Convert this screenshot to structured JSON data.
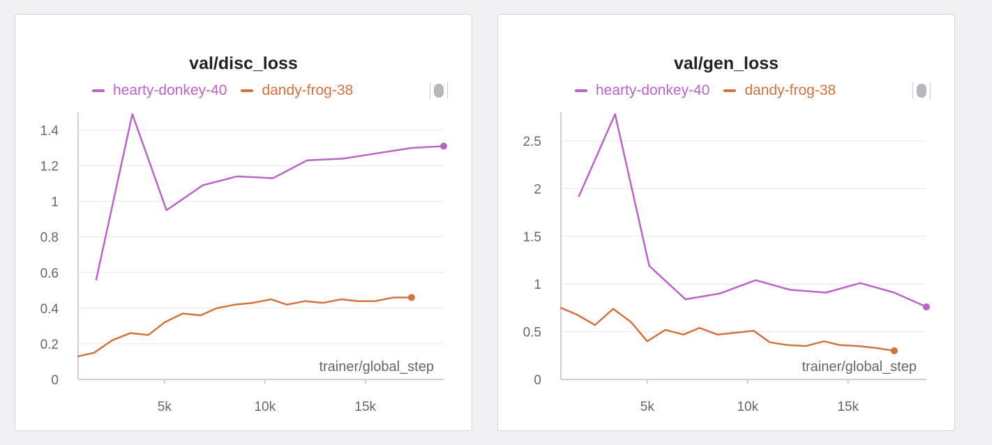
{
  "colors": {
    "hearty-donkey-40": "#b865c5",
    "dandy-frog-38": "#d1733e",
    "grid": "#e7e7ea",
    "axis": "#cfcfd4"
  },
  "legend_tool_icon": "toggle-pill-icon",
  "chart_data": [
    {
      "type": "line",
      "title": "val/disc_loss",
      "xlabel": "trainer/global_step",
      "ylabel": "",
      "xlim": [
        700,
        18900
      ],
      "ylim": [
        0,
        1.5
      ],
      "xticks": [
        {
          "v": 5000,
          "label": "5k"
        },
        {
          "v": 10000,
          "label": "10k"
        },
        {
          "v": 15000,
          "label": "15k"
        }
      ],
      "yticks": [
        {
          "v": 0,
          "label": "0"
        },
        {
          "v": 0.2,
          "label": "0.2"
        },
        {
          "v": 0.4,
          "label": "0.4"
        },
        {
          "v": 0.6,
          "label": "0.6"
        },
        {
          "v": 0.8,
          "label": "0.8"
        },
        {
          "v": 1,
          "label": "1"
        },
        {
          "v": 1.2,
          "label": "1.2"
        },
        {
          "v": 1.4,
          "label": "1.4"
        }
      ],
      "legend": "top",
      "series": [
        {
          "name": "hearty-donkey-40",
          "x": [
            1600,
            3400,
            5100,
            6900,
            8600,
            10400,
            12100,
            13900,
            15600,
            17300,
            18900
          ],
          "y": [
            0.56,
            1.49,
            0.95,
            1.09,
            1.14,
            1.13,
            1.23,
            1.24,
            1.27,
            1.3,
            1.31
          ]
        },
        {
          "name": "dandy-frog-38",
          "x": [
            700,
            1500,
            2400,
            3300,
            4200,
            5000,
            5900,
            6800,
            7600,
            8500,
            9400,
            10300,
            11100,
            12000,
            12900,
            13800,
            14600,
            15500,
            16400,
            17300
          ],
          "y": [
            0.13,
            0.15,
            0.22,
            0.26,
            0.25,
            0.32,
            0.37,
            0.36,
            0.4,
            0.42,
            0.43,
            0.45,
            0.42,
            0.44,
            0.43,
            0.45,
            0.44,
            0.44,
            0.46,
            0.46
          ]
        }
      ]
    },
    {
      "type": "line",
      "title": "val/gen_loss",
      "xlabel": "trainer/global_step",
      "ylabel": "",
      "xlim": [
        700,
        18900
      ],
      "ylim": [
        0,
        2.8
      ],
      "xticks": [
        {
          "v": 5000,
          "label": "5k"
        },
        {
          "v": 10000,
          "label": "10k"
        },
        {
          "v": 15000,
          "label": "15k"
        }
      ],
      "yticks": [
        {
          "v": 0,
          "label": "0"
        },
        {
          "v": 0.5,
          "label": "0.5"
        },
        {
          "v": 1,
          "label": "1"
        },
        {
          "v": 1.5,
          "label": "1.5"
        },
        {
          "v": 2,
          "label": "2"
        },
        {
          "v": 2.5,
          "label": "2.5"
        }
      ],
      "legend": "top",
      "series": [
        {
          "name": "hearty-donkey-40",
          "x": [
            1600,
            3400,
            5100,
            6900,
            8600,
            10400,
            12100,
            13900,
            15600,
            17300,
            18900
          ],
          "y": [
            1.92,
            2.78,
            1.19,
            0.84,
            0.9,
            1.04,
            0.94,
            0.91,
            1.01,
            0.91,
            0.76
          ]
        },
        {
          "name": "dandy-frog-38",
          "x": [
            700,
            1500,
            2400,
            3300,
            4200,
            5000,
            5900,
            6800,
            7600,
            8500,
            9400,
            10300,
            11100,
            12000,
            12900,
            13800,
            14600,
            15500,
            16400,
            17300
          ],
          "y": [
            0.75,
            0.68,
            0.57,
            0.74,
            0.6,
            0.4,
            0.52,
            0.47,
            0.54,
            0.47,
            0.49,
            0.51,
            0.39,
            0.36,
            0.35,
            0.4,
            0.36,
            0.35,
            0.33,
            0.3
          ]
        }
      ]
    }
  ]
}
